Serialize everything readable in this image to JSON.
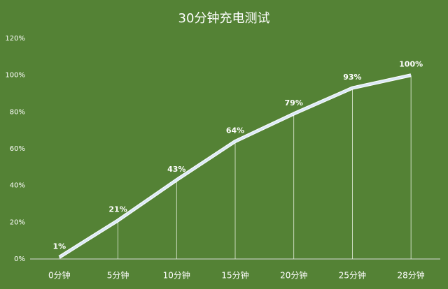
{
  "chart_data": {
    "type": "line",
    "title": "30分钟充电测试",
    "categories": [
      "0分钟",
      "5分钟",
      "10分钟",
      "15分钟",
      "20分钟",
      "25分钟",
      "28分钟"
    ],
    "values": [
      1,
      21,
      43,
      64,
      79,
      93,
      100
    ],
    "value_labels": [
      "1%",
      "21%",
      "43%",
      "64%",
      "79%",
      "93%",
      "100%"
    ],
    "color": "#dbe9f7",
    "ylim": [
      0,
      120
    ],
    "yticks": [
      {
        "value": 0,
        "label": "0%"
      },
      {
        "value": 20,
        "label": "20%"
      },
      {
        "value": 40,
        "label": "40%"
      },
      {
        "value": 60,
        "label": "60%"
      },
      {
        "value": 80,
        "label": "80%"
      },
      {
        "value": 100,
        "label": "100%"
      },
      {
        "value": 120,
        "label": "120%"
      }
    ],
    "grid": false
  }
}
